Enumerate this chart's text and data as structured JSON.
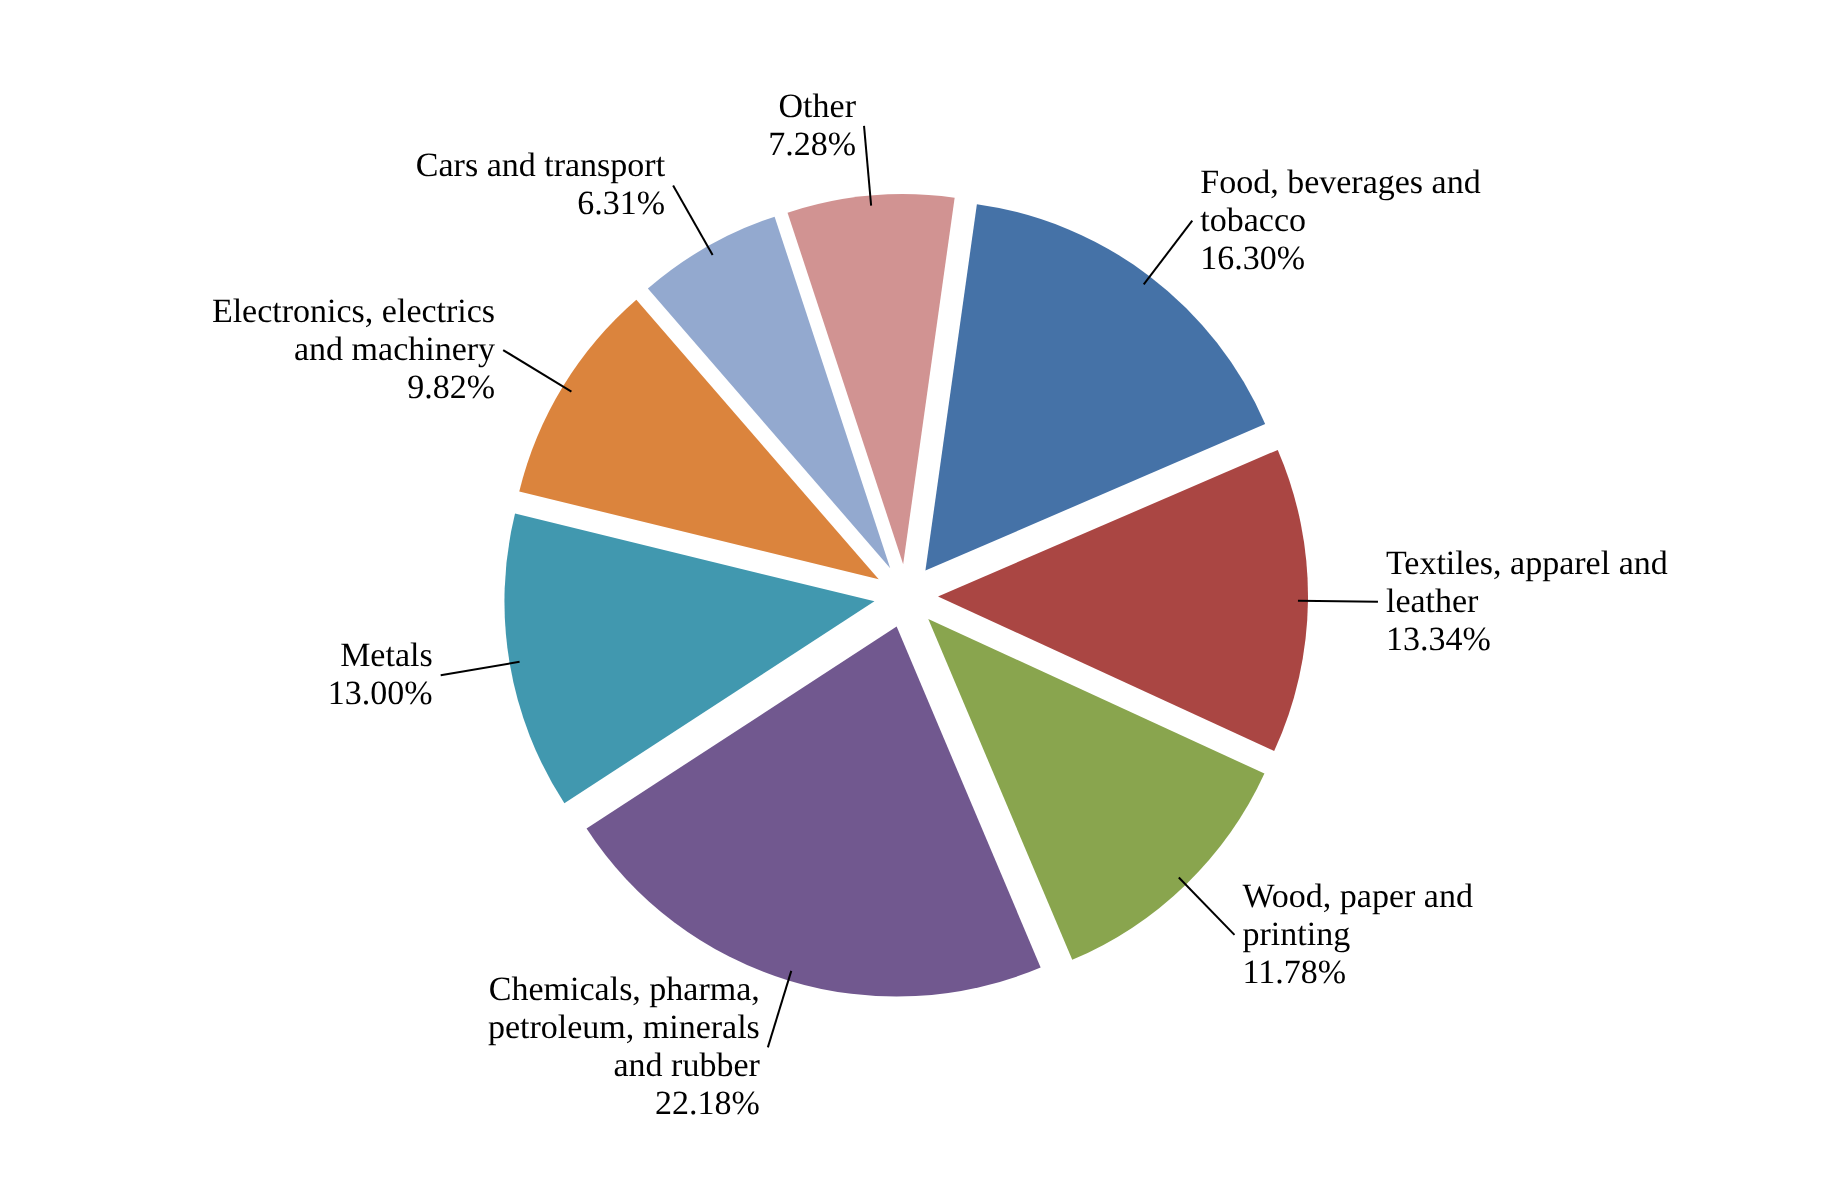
{
  "chart_data": {
    "type": "pie",
    "categories": [
      "Food, beverages and tobacco",
      "Textiles, apparel and leather",
      "Wood, paper and printing",
      "Chemicals, pharma, petroleum, minerals and rubber",
      "Metals",
      "Electronics, electrics and machinery",
      "Cars and transport",
      "Other"
    ],
    "values": [
      16.3,
      13.34,
      11.78,
      22.18,
      13.0,
      9.82,
      6.31,
      7.28
    ],
    "value_labels": [
      "16.30%",
      "13.34%",
      "11.78%",
      "22.18%",
      "13.00%",
      "9.82%",
      "6.31%",
      "7.28%"
    ],
    "colors": [
      "#4572a7",
      "#aa4643",
      "#89a54e",
      "#71588f",
      "#4198af",
      "#db843d",
      "#93a9cf",
      "#d19392"
    ]
  }
}
